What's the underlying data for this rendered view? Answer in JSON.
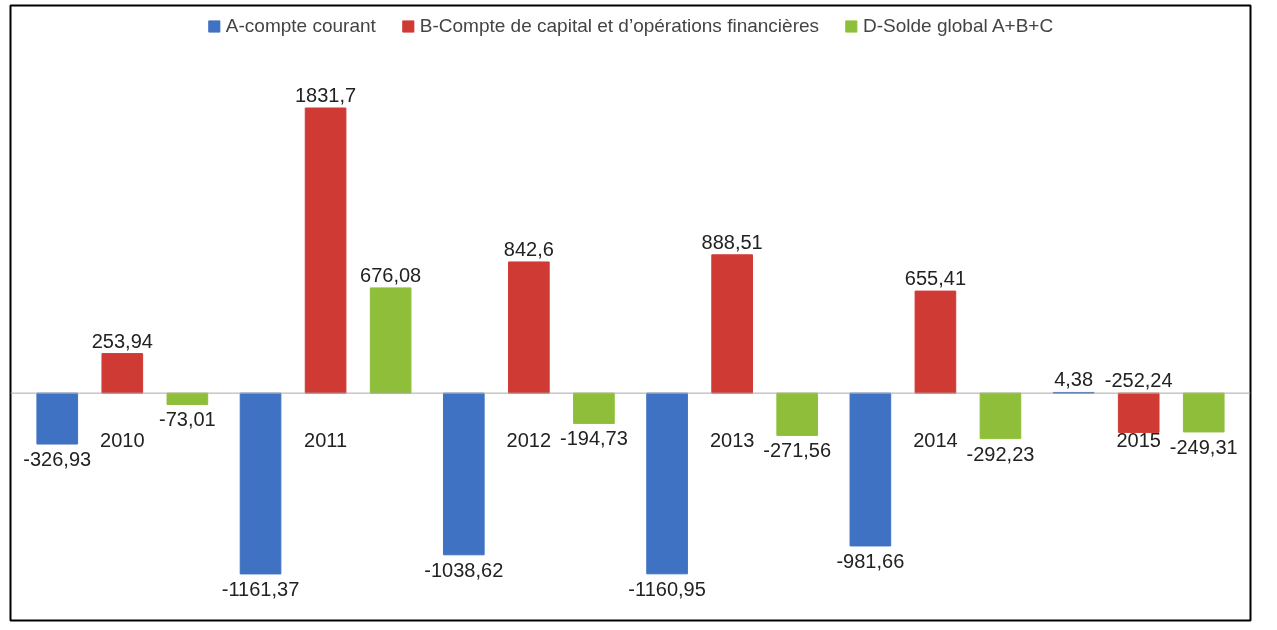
{
  "chart_data": {
    "type": "bar",
    "categories": [
      "2010",
      "2011",
      "2012",
      "2013",
      "2014",
      "2015"
    ],
    "series": [
      {
        "name": "A-compte courant",
        "color": "#3f72c2",
        "values": [
          -326.93,
          -1161.37,
          -1038.62,
          -1160.95,
          -981.66,
          4.38
        ],
        "value_labels": [
          "-326,93",
          "-1161,37",
          "-1038,62",
          "-1160,95",
          "-981,66",
          "4,38"
        ]
      },
      {
        "name": "B-Compte de capital et d’opérations financières",
        "color": "#d03a35",
        "values": [
          253.94,
          1831.7,
          842.6,
          888.51,
          655.41,
          -252.24
        ],
        "value_labels": [
          "253,94",
          "1831,7",
          "842,6",
          "888,51",
          "655,41",
          "-252,24"
        ]
      },
      {
        "name": "D-Solde global A+B+C",
        "color": "#8fbf3a",
        "values": [
          -73.01,
          676.08,
          -194.73,
          -271.56,
          -292.23,
          -249.31
        ],
        "value_labels": [
          "-73,01",
          "676,08",
          "-194,73",
          "-271,56",
          "-292,23",
          "-249,31"
        ]
      }
    ],
    "legend": "top",
    "grid": false
  }
}
